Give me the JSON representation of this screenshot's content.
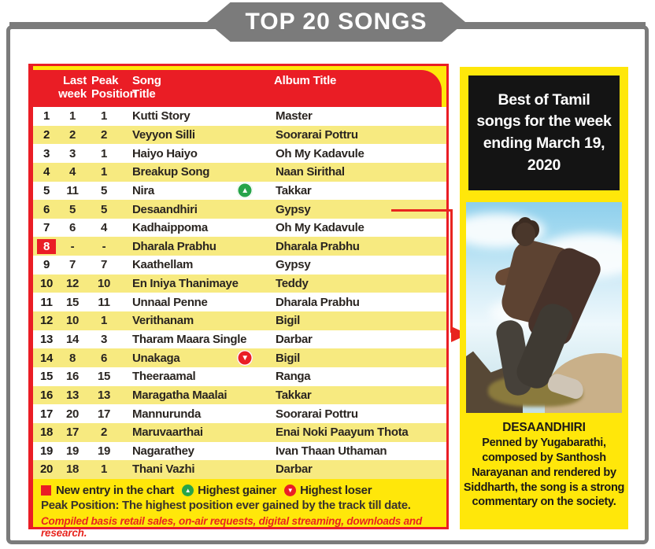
{
  "banner": {
    "title": "TOP 20 SONGS"
  },
  "table": {
    "headers": {
      "last_week": "Last week",
      "peak_position": "Peak Position",
      "song_title": "Song Title",
      "album_title": "Album Title"
    },
    "rows": [
      {
        "rank": "1",
        "last_week": "1",
        "peak": "1",
        "song": "Kutti Story",
        "album": "Master",
        "new_entry": false,
        "marker": ""
      },
      {
        "rank": "2",
        "last_week": "2",
        "peak": "2",
        "song": "Veyyon Silli",
        "album": "Soorarai Pottru",
        "new_entry": false,
        "marker": ""
      },
      {
        "rank": "3",
        "last_week": "3",
        "peak": "1",
        "song": "Haiyo Haiyo",
        "album": "Oh My Kadavule",
        "new_entry": false,
        "marker": ""
      },
      {
        "rank": "4",
        "last_week": "4",
        "peak": "1",
        "song": "Breakup Song",
        "album": "Naan Sirithal",
        "new_entry": false,
        "marker": ""
      },
      {
        "rank": "5",
        "last_week": "11",
        "peak": "5",
        "song": "Nira",
        "album": "Takkar",
        "new_entry": false,
        "marker": "gainer"
      },
      {
        "rank": "6",
        "last_week": "5",
        "peak": "5",
        "song": "Desaandhiri",
        "album": "Gypsy",
        "new_entry": false,
        "marker": ""
      },
      {
        "rank": "7",
        "last_week": "6",
        "peak": "4",
        "song": "Kadhaippoma",
        "album": "Oh My Kadavule",
        "new_entry": false,
        "marker": ""
      },
      {
        "rank": "8",
        "last_week": "-",
        "peak": "-",
        "song": "Dharala Prabhu",
        "album": "Dharala Prabhu",
        "new_entry": true,
        "marker": ""
      },
      {
        "rank": "9",
        "last_week": "7",
        "peak": "7",
        "song": "Kaathellam",
        "album": "Gypsy",
        "new_entry": false,
        "marker": ""
      },
      {
        "rank": "10",
        "last_week": "12",
        "peak": "10",
        "song": "En Iniya Thanimaye",
        "album": "Teddy",
        "new_entry": false,
        "marker": ""
      },
      {
        "rank": "11",
        "last_week": "15",
        "peak": "11",
        "song": "Unnaal Penne",
        "album": "Dharala Prabhu",
        "new_entry": false,
        "marker": ""
      },
      {
        "rank": "12",
        "last_week": "10",
        "peak": "1",
        "song": "Verithanam",
        "album": "Bigil",
        "new_entry": false,
        "marker": ""
      },
      {
        "rank": "13",
        "last_week": "14",
        "peak": "3",
        "song": "Tharam Maara Single",
        "album": "Darbar",
        "new_entry": false,
        "marker": ""
      },
      {
        "rank": "14",
        "last_week": "8",
        "peak": "6",
        "song": "Unakaga",
        "album": "Bigil",
        "new_entry": false,
        "marker": "loser"
      },
      {
        "rank": "15",
        "last_week": "16",
        "peak": "15",
        "song": "Theeraamal",
        "album": "Ranga",
        "new_entry": false,
        "marker": ""
      },
      {
        "rank": "16",
        "last_week": "13",
        "peak": "13",
        "song": "Maragatha Maalai",
        "album": "Takkar",
        "new_entry": false,
        "marker": ""
      },
      {
        "rank": "17",
        "last_week": "20",
        "peak": "17",
        "song": "Mannurunda",
        "album": "Soorarai Pottru",
        "new_entry": false,
        "marker": ""
      },
      {
        "rank": "18",
        "last_week": "17",
        "peak": "2",
        "song": "Maruvaarthai",
        "album": "Enai Noki Paayum Thota",
        "new_entry": false,
        "marker": ""
      },
      {
        "rank": "19",
        "last_week": "19",
        "peak": "19",
        "song": "Nagarathey",
        "album": "Ivan Thaan Uthaman",
        "new_entry": false,
        "marker": ""
      },
      {
        "rank": "20",
        "last_week": "18",
        "peak": "1",
        "song": "Thani Vazhi",
        "album": "Darbar",
        "new_entry": false,
        "marker": ""
      }
    ],
    "legend": {
      "new_entry": "New entry in the chart",
      "gainer": "Highest gainer",
      "loser": "Highest loser"
    },
    "peak_note": "Peak Position: The highest position ever gained by the track till date.",
    "compiled_note": "Compiled basis retail sales, on-air requests, digital streaming, downloads and research."
  },
  "sidebar": {
    "headline": "Best of Tamil songs for the week ending March 19, 2020",
    "caption_title": "DESAANDHIRI",
    "caption_body": "Penned by Yugabarathi, composed by Santhosh Narayanan and rendered by Siddharth, the song is a strong commentary on the society."
  },
  "icons": {
    "gainer_glyph": "▲",
    "loser_glyph": "▼"
  },
  "colors": {
    "accent_red": "#ea1d25",
    "bright_yellow": "#ffe70a",
    "alt_row_yellow": "#f7ea80",
    "frame_gray": "#7b7b7b",
    "gainer_green": "#27a44a",
    "headline_black": "#141414",
    "text_dark": "#2a2521"
  }
}
